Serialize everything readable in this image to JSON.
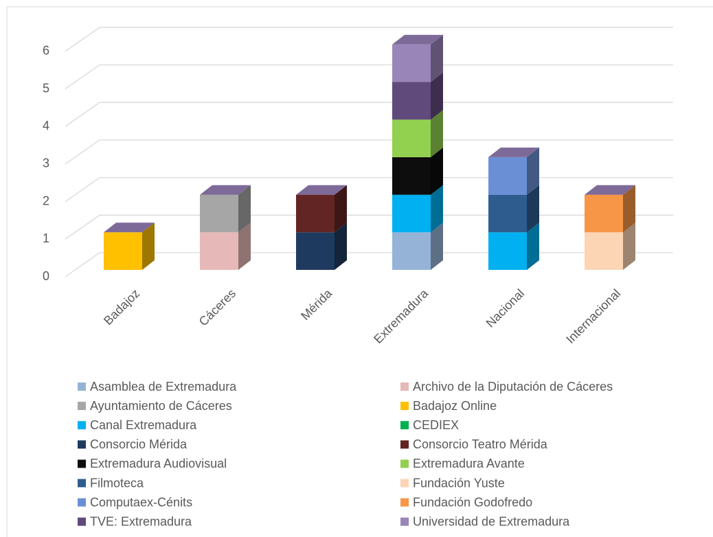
{
  "chart_data": {
    "type": "bar3d_stacked",
    "categories": [
      "Badajoz",
      "Cáceres",
      "Mérida",
      "Extremadura",
      "Nacional",
      "Internacional"
    ],
    "series": [
      {
        "name": "Asamblea de Extremadura",
        "color": "#95b3d7",
        "values": [
          null,
          null,
          null,
          1,
          null,
          null
        ]
      },
      {
        "name": "Archivo de la Diputación de Cáceres",
        "color": "#e6b9b8",
        "values": [
          null,
          1,
          null,
          null,
          null,
          null
        ]
      },
      {
        "name": "Ayuntamiento de Cáceres",
        "color": "#a6a6a6",
        "values": [
          null,
          1,
          null,
          null,
          null,
          null
        ]
      },
      {
        "name": "Badajoz Online",
        "color": "#ffc000",
        "values": [
          1,
          null,
          null,
          null,
          null,
          null
        ]
      },
      {
        "name": "Canal Extremadura",
        "color": "#00b0f0",
        "values": [
          null,
          null,
          null,
          1,
          1,
          null
        ]
      },
      {
        "name": "CEDIEX",
        "color": "#00b050",
        "values": [
          null,
          null,
          null,
          null,
          null,
          null
        ]
      },
      {
        "name": "Consorcio Mérida",
        "color": "#1f3a5f",
        "values": [
          null,
          null,
          1,
          null,
          null,
          null
        ]
      },
      {
        "name": "Consorcio Teatro Mérida",
        "color": "#632523",
        "values": [
          null,
          null,
          1,
          null,
          null,
          null
        ]
      },
      {
        "name": "Extremadura Audiovisual",
        "color": "#0d0d0d",
        "values": [
          null,
          null,
          null,
          1,
          null,
          null
        ]
      },
      {
        "name": "Extremadura Avante",
        "color": "#92d050",
        "values": [
          null,
          null,
          null,
          1,
          null,
          null
        ]
      },
      {
        "name": "Filmoteca",
        "color": "#2e5c8f",
        "values": [
          null,
          null,
          null,
          null,
          1,
          null
        ]
      },
      {
        "name": "Fundación Yuste",
        "color": "#fcd5b4",
        "values": [
          null,
          null,
          null,
          null,
          null,
          1
        ]
      },
      {
        "name": "Computaex-Cénits",
        "color": "#6a8fd4",
        "values": [
          null,
          null,
          null,
          null,
          1,
          null
        ]
      },
      {
        "name": "Fundación Godofredo",
        "color": "#f79646",
        "values": [
          null,
          null,
          null,
          null,
          null,
          1
        ]
      },
      {
        "name": "TVE: Extremadura",
        "color": "#604a7b",
        "values": [
          null,
          null,
          null,
          1,
          null,
          null
        ]
      },
      {
        "name": "Universidad de Extremadura",
        "color": "#9a85b8",
        "values": [
          null,
          null,
          null,
          1,
          null,
          null
        ]
      }
    ],
    "ylim": [
      0,
      6
    ],
    "yticks": [
      0,
      1,
      2,
      3,
      4,
      5,
      6
    ],
    "grid": true
  }
}
